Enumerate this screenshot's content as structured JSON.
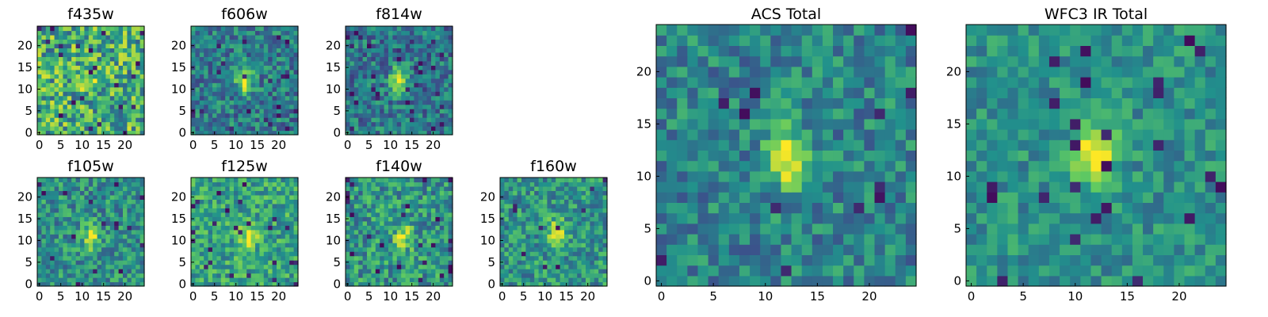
{
  "figure": {
    "colormap": "viridis",
    "colors": {
      "vmin": "#440154",
      "low": "#3b528b",
      "mid": "#21918c",
      "high": "#5ec962",
      "vmax": "#fde725"
    }
  },
  "chart_data": [
    {
      "type": "heatmap",
      "title": "f435w",
      "grid_size": 25,
      "xticks": [
        "0",
        "5",
        "10",
        "15",
        "20"
      ],
      "yticks": [
        "0",
        "5",
        "10",
        "15",
        "20"
      ],
      "xlim": [
        0,
        24
      ],
      "ylim": [
        0,
        24
      ],
      "source_center": [
        12,
        12
      ],
      "signal_strength": 0.15,
      "base_level": 0.62,
      "noise_level": 0.32
    },
    {
      "type": "heatmap",
      "title": "f606w",
      "grid_size": 25,
      "xticks": [
        "0",
        "5",
        "10",
        "15",
        "20"
      ],
      "yticks": [
        "0",
        "5",
        "10",
        "15",
        "20"
      ],
      "xlim": [
        0,
        24
      ],
      "ylim": [
        0,
        24
      ],
      "source_center": [
        12,
        12
      ],
      "signal_strength": 0.55,
      "base_level": 0.42,
      "noise_level": 0.22
    },
    {
      "type": "heatmap",
      "title": "f814w",
      "grid_size": 25,
      "xticks": [
        "0",
        "5",
        "10",
        "15",
        "20"
      ],
      "yticks": [
        "0",
        "5",
        "10",
        "15",
        "20"
      ],
      "xlim": [
        0,
        24
      ],
      "ylim": [
        0,
        24
      ],
      "source_center": [
        12,
        12
      ],
      "signal_strength": 0.6,
      "base_level": 0.4,
      "noise_level": 0.22
    },
    {
      "type": "heatmap",
      "title": "f105w",
      "grid_size": 25,
      "xticks": [
        "0",
        "5",
        "10",
        "15",
        "20"
      ],
      "yticks": [
        "0",
        "5",
        "10",
        "15",
        "20"
      ],
      "xlim": [
        0,
        24
      ],
      "ylim": [
        0,
        24
      ],
      "source_center": [
        12,
        11
      ],
      "signal_strength": 0.4,
      "base_level": 0.5,
      "noise_level": 0.22
    },
    {
      "type": "heatmap",
      "title": "f125w",
      "grid_size": 25,
      "xticks": [
        "0",
        "5",
        "10",
        "15",
        "20"
      ],
      "yticks": [
        "0",
        "5",
        "10",
        "15",
        "20"
      ],
      "xlim": [
        0,
        24
      ],
      "ylim": [
        0,
        24
      ],
      "source_center": [
        13,
        11
      ],
      "signal_strength": 0.35,
      "base_level": 0.58,
      "noise_level": 0.22
    },
    {
      "type": "heatmap",
      "title": "f140w",
      "grid_size": 25,
      "xticks": [
        "0",
        "5",
        "10",
        "15",
        "20"
      ],
      "yticks": [
        "0",
        "5",
        "10",
        "15",
        "20"
      ],
      "xlim": [
        0,
        24
      ],
      "ylim": [
        0,
        24
      ],
      "source_center": [
        13,
        11
      ],
      "signal_strength": 0.4,
      "base_level": 0.52,
      "noise_level": 0.24
    },
    {
      "type": "heatmap",
      "title": "f160w",
      "grid_size": 25,
      "xticks": [
        "0",
        "5",
        "10",
        "15",
        "20"
      ],
      "yticks": [
        "0",
        "5",
        "10",
        "15",
        "20"
      ],
      "xlim": [
        0,
        24
      ],
      "ylim": [
        0,
        24
      ],
      "source_center": [
        13,
        12
      ],
      "signal_strength": 0.45,
      "base_level": 0.52,
      "noise_level": 0.22
    },
    {
      "type": "heatmap",
      "title": "ACS Total",
      "grid_size": 25,
      "xticks": [
        "0",
        "5",
        "10",
        "15",
        "20"
      ],
      "yticks": [
        "0",
        "5",
        "10",
        "15",
        "20"
      ],
      "xlim": [
        0,
        24
      ],
      "ylim": [
        0,
        24
      ],
      "source_center": [
        12,
        12
      ],
      "signal_strength": 0.55,
      "base_level": 0.45,
      "noise_level": 0.2
    },
    {
      "type": "heatmap",
      "title": "WFC3 IR Total",
      "grid_size": 25,
      "xticks": [
        "0",
        "5",
        "10",
        "15",
        "20"
      ],
      "yticks": [
        "0",
        "5",
        "10",
        "15",
        "20"
      ],
      "xlim": [
        0,
        24
      ],
      "ylim": [
        0,
        24
      ],
      "source_center": [
        12,
        12
      ],
      "signal_strength": 0.5,
      "base_level": 0.5,
      "noise_level": 0.16
    }
  ]
}
